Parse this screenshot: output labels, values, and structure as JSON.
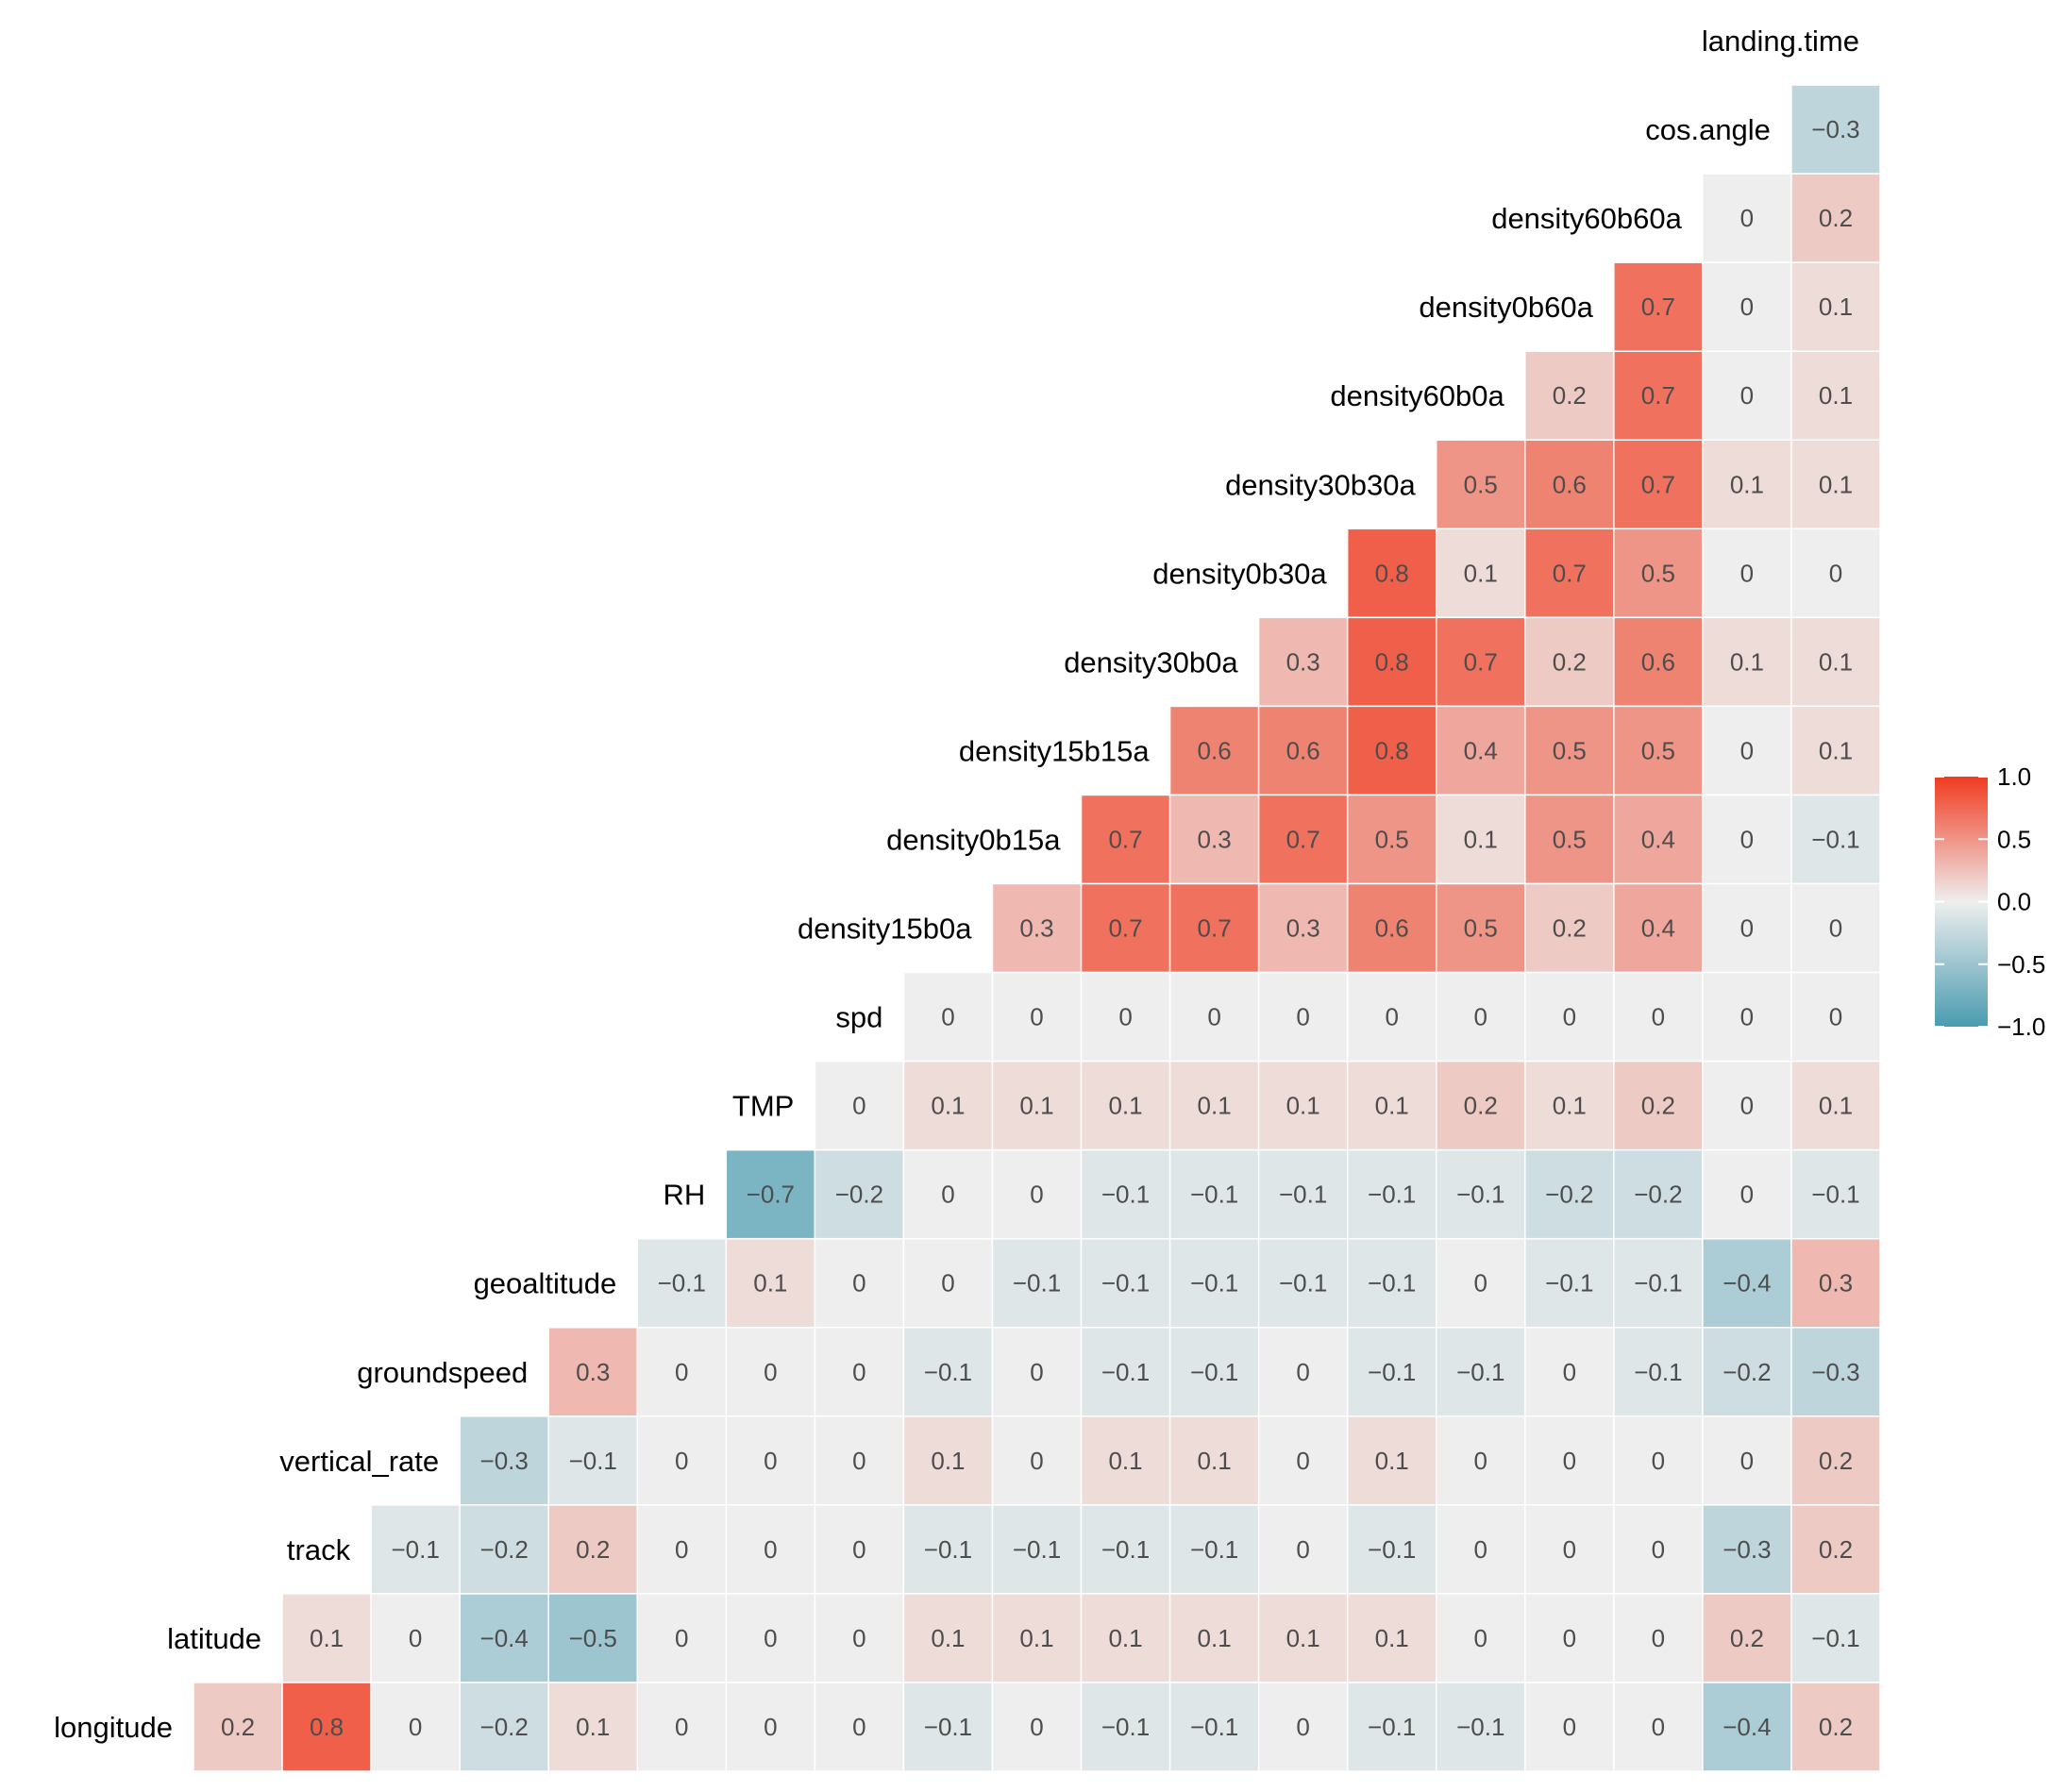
{
  "chart_data": {
    "type": "heatmap",
    "title": "",
    "variables": [
      "longitude",
      "latitude",
      "track",
      "vertical_rate",
      "groundspeed",
      "geoaltitude",
      "RH",
      "TMP",
      "spd",
      "density15b0a",
      "density0b15a",
      "density15b15a",
      "density30b0a",
      "density0b30a",
      "density30b30a",
      "density60b0a",
      "density0b60a",
      "density60b60a",
      "cos.angle",
      "landing.time"
    ],
    "rows": [
      {
        "label": "landing.time",
        "values": []
      },
      {
        "label": "cos.angle",
        "values": [
          -0.3
        ]
      },
      {
        "label": "density60b60a",
        "values": [
          0,
          0.2
        ]
      },
      {
        "label": "density0b60a",
        "values": [
          0.7,
          0,
          0.1
        ]
      },
      {
        "label": "density60b0a",
        "values": [
          0.2,
          0.7,
          0,
          0.1
        ]
      },
      {
        "label": "density30b30a",
        "values": [
          0.5,
          0.6,
          0.7,
          0.1,
          0.1
        ]
      },
      {
        "label": "density0b30a",
        "values": [
          0.8,
          0.1,
          0.7,
          0.5,
          0,
          0
        ]
      },
      {
        "label": "density30b0a",
        "values": [
          0.3,
          0.8,
          0.7,
          0.2,
          0.6,
          0.1,
          0.1
        ]
      },
      {
        "label": "density15b15a",
        "values": [
          0.6,
          0.6,
          0.8,
          0.4,
          0.5,
          0.5,
          0,
          0.1
        ]
      },
      {
        "label": "density0b15a",
        "values": [
          0.7,
          0.3,
          0.7,
          0.5,
          0.1,
          0.5,
          0.4,
          0,
          -0.1
        ]
      },
      {
        "label": "density15b0a",
        "values": [
          0.3,
          0.7,
          0.7,
          0.3,
          0.6,
          0.5,
          0.2,
          0.4,
          0,
          0
        ]
      },
      {
        "label": "spd",
        "values": [
          0,
          0,
          0,
          0,
          0,
          0,
          0,
          0,
          0,
          0,
          0
        ]
      },
      {
        "label": "TMP",
        "values": [
          0,
          0.1,
          0.1,
          0.1,
          0.1,
          0.1,
          0.1,
          0.2,
          0.1,
          0.2,
          0,
          0.1
        ]
      },
      {
        "label": "RH",
        "values": [
          -0.7,
          -0.2,
          0,
          0,
          -0.1,
          -0.1,
          -0.1,
          -0.1,
          -0.1,
          -0.2,
          -0.2,
          0,
          -0.1
        ]
      },
      {
        "label": "geoaltitude",
        "values": [
          -0.1,
          0.1,
          0,
          0,
          -0.1,
          -0.1,
          -0.1,
          -0.1,
          -0.1,
          0,
          -0.1,
          -0.1,
          -0.4,
          0.3
        ]
      },
      {
        "label": "groundspeed",
        "values": [
          0.3,
          0,
          0,
          0,
          -0.1,
          0,
          -0.1,
          -0.1,
          0,
          -0.1,
          -0.1,
          0,
          -0.1,
          -0.2,
          -0.3
        ]
      },
      {
        "label": "vertical_rate",
        "values": [
          -0.3,
          -0.1,
          0,
          0,
          0,
          0.1,
          0,
          0.1,
          0.1,
          0,
          0.1,
          0,
          0,
          0,
          0,
          0.2
        ]
      },
      {
        "label": "track",
        "values": [
          -0.1,
          -0.2,
          0.2,
          0,
          0,
          0,
          -0.1,
          -0.1,
          -0.1,
          -0.1,
          0,
          -0.1,
          0,
          0,
          0,
          -0.3,
          0.2
        ]
      },
      {
        "label": "latitude",
        "values": [
          0.1,
          0,
          -0.4,
          -0.5,
          0,
          0,
          0,
          0.1,
          0.1,
          0.1,
          0.1,
          0.1,
          0.1,
          0,
          0,
          0,
          0.2,
          -0.1
        ]
      },
      {
        "label": "longitude",
        "values": [
          0.2,
          0.8,
          0,
          -0.2,
          0.1,
          0,
          0,
          0,
          -0.1,
          0,
          -0.1,
          -0.1,
          0,
          -0.1,
          -0.1,
          0,
          0,
          -0.4,
          0.2
        ]
      }
    ],
    "legend": {
      "position": "right",
      "ticks": [
        "1.0",
        "0.5",
        "0.0",
        "−0.5",
        "−1.0"
      ],
      "range": [
        -1,
        1
      ]
    },
    "colors": {
      "low": "#4a9bb0",
      "mid": "#eeeeee",
      "high": "#f03b20",
      "text": "#4d4d4d"
    },
    "cell_value_labels": true
  }
}
